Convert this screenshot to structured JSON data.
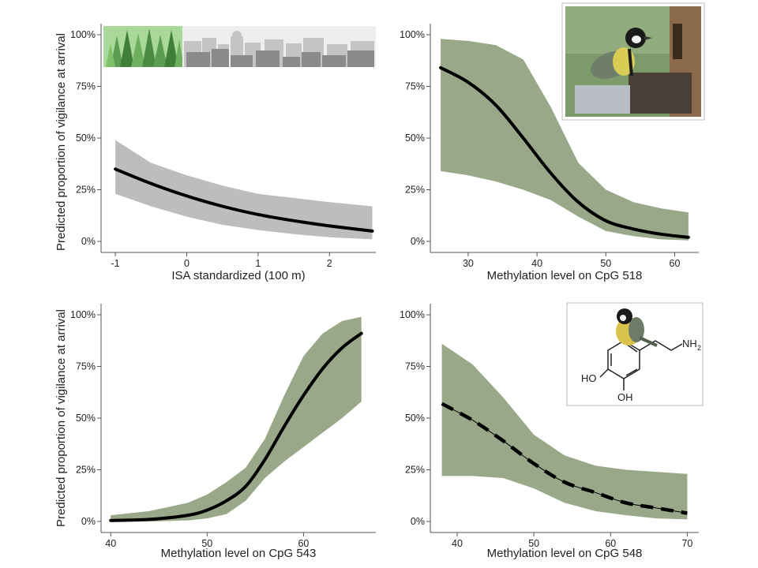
{
  "figure": {
    "ylabel": "Predicted proportion of vigilance at arrival"
  },
  "colors": {
    "ci_green": "#99a888",
    "ci_grey": "#bdbdbd",
    "line": "#000000",
    "axis": "#555555",
    "forest_light": "#7fbf6a",
    "forest_dark": "#3f7f3a",
    "city_grey": "#8a8a8a"
  },
  "photos": {
    "bird_on_box": {
      "description_icon": "great-tit-photo"
    },
    "bird_dopamine": {
      "description_icon": "great-tit-on-dopamine",
      "labels": {
        "ho": "HO",
        "oh": "OH",
        "nh2": "NH",
        "sub2": "2"
      }
    }
  },
  "chart_data": [
    {
      "type": "line",
      "id": "isa",
      "title": "",
      "xlabel": "ISA standardized (100 m)",
      "ylabel": "Predicted proportion of vigilance at arrival",
      "xlim": [
        -1.2,
        2.65
      ],
      "ylim": [
        0,
        1.0
      ],
      "xticks": [
        -1,
        0,
        1,
        2
      ],
      "xtick_labels": [
        "-1",
        "0",
        "1",
        "2"
      ],
      "yticks": [
        0,
        0.25,
        0.5,
        0.75,
        1.0
      ],
      "ytick_labels": [
        "0%",
        "25%",
        "50%",
        "75%",
        "100%"
      ],
      "ci_color": "grey",
      "line_style": "solid",
      "x": [
        -1.0,
        -0.5,
        0.0,
        0.5,
        1.0,
        1.5,
        2.0,
        2.6
      ],
      "fit": [
        0.35,
        0.28,
        0.22,
        0.17,
        0.13,
        0.1,
        0.075,
        0.05
      ],
      "lower": [
        0.23,
        0.17,
        0.12,
        0.08,
        0.055,
        0.035,
        0.02,
        0.01
      ],
      "upper": [
        0.49,
        0.38,
        0.32,
        0.27,
        0.23,
        0.21,
        0.19,
        0.17
      ]
    },
    {
      "type": "line",
      "id": "cpg518",
      "title": "",
      "xlabel": "Methylation level on CpG 518",
      "ylabel": "",
      "xlim": [
        24.5,
        63.5
      ],
      "ylim": [
        0,
        1.0
      ],
      "xticks": [
        30,
        40,
        50,
        60
      ],
      "xtick_labels": [
        "30",
        "40",
        "50",
        "60"
      ],
      "yticks": [
        0,
        0.25,
        0.5,
        0.75,
        1.0
      ],
      "ytick_labels": [
        "0%",
        "25%",
        "50%",
        "75%",
        "100%"
      ],
      "ci_color": "green",
      "line_style": "solid",
      "x": [
        26,
        30,
        34,
        38,
        42,
        46,
        50,
        54,
        58,
        62
      ],
      "fit": [
        0.84,
        0.77,
        0.66,
        0.5,
        0.33,
        0.19,
        0.1,
        0.06,
        0.035,
        0.02
      ],
      "lower": [
        0.34,
        0.32,
        0.29,
        0.25,
        0.2,
        0.12,
        0.05,
        0.025,
        0.01,
        0.005
      ],
      "upper": [
        0.98,
        0.97,
        0.95,
        0.88,
        0.65,
        0.38,
        0.25,
        0.19,
        0.16,
        0.14
      ]
    },
    {
      "type": "line",
      "id": "cpg543",
      "title": "",
      "xlabel": "Methylation level on CpG 543",
      "ylabel": "Predicted proportion of vigilance at arrival",
      "xlim": [
        39,
        67.5
      ],
      "ylim": [
        0,
        1.0
      ],
      "xticks": [
        40,
        50,
        60
      ],
      "xtick_labels": [
        "40",
        "50",
        "60"
      ],
      "yticks": [
        0,
        0.25,
        0.5,
        0.75,
        1.0
      ],
      "ytick_labels": [
        "0%",
        "25%",
        "50%",
        "75%",
        "100%"
      ],
      "ci_color": "green",
      "line_style": "solid",
      "x": [
        40,
        44,
        48,
        50,
        52,
        54,
        56,
        58,
        60,
        62,
        64,
        66
      ],
      "fit": [
        0.005,
        0.01,
        0.03,
        0.055,
        0.1,
        0.17,
        0.3,
        0.46,
        0.61,
        0.74,
        0.84,
        0.91
      ],
      "lower": [
        0.0,
        0.0,
        0.005,
        0.015,
        0.035,
        0.1,
        0.21,
        0.29,
        0.36,
        0.43,
        0.5,
        0.58
      ],
      "upper": [
        0.03,
        0.05,
        0.09,
        0.13,
        0.19,
        0.26,
        0.4,
        0.61,
        0.8,
        0.91,
        0.97,
        0.99
      ]
    },
    {
      "type": "line",
      "id": "cpg548",
      "title": "",
      "xlabel": "Methylation level on CpG 548",
      "ylabel": "",
      "xlim": [
        36.5,
        71.5
      ],
      "ylim": [
        0,
        1.0
      ],
      "xticks": [
        40,
        50,
        60,
        70
      ],
      "xtick_labels": [
        "40",
        "50",
        "60",
        "70"
      ],
      "yticks": [
        0,
        0.25,
        0.5,
        0.75,
        1.0
      ],
      "ytick_labels": [
        "0%",
        "25%",
        "50%",
        "75%",
        "100%"
      ],
      "ci_color": "green",
      "line_style": "dashed",
      "x": [
        38,
        42,
        46,
        50,
        54,
        58,
        62,
        66,
        70
      ],
      "fit": [
        0.57,
        0.49,
        0.39,
        0.28,
        0.19,
        0.14,
        0.09,
        0.065,
        0.04
      ],
      "lower": [
        0.22,
        0.22,
        0.21,
        0.16,
        0.09,
        0.05,
        0.03,
        0.015,
        0.01
      ],
      "upper": [
        0.86,
        0.76,
        0.6,
        0.42,
        0.32,
        0.27,
        0.25,
        0.24,
        0.23
      ]
    }
  ]
}
